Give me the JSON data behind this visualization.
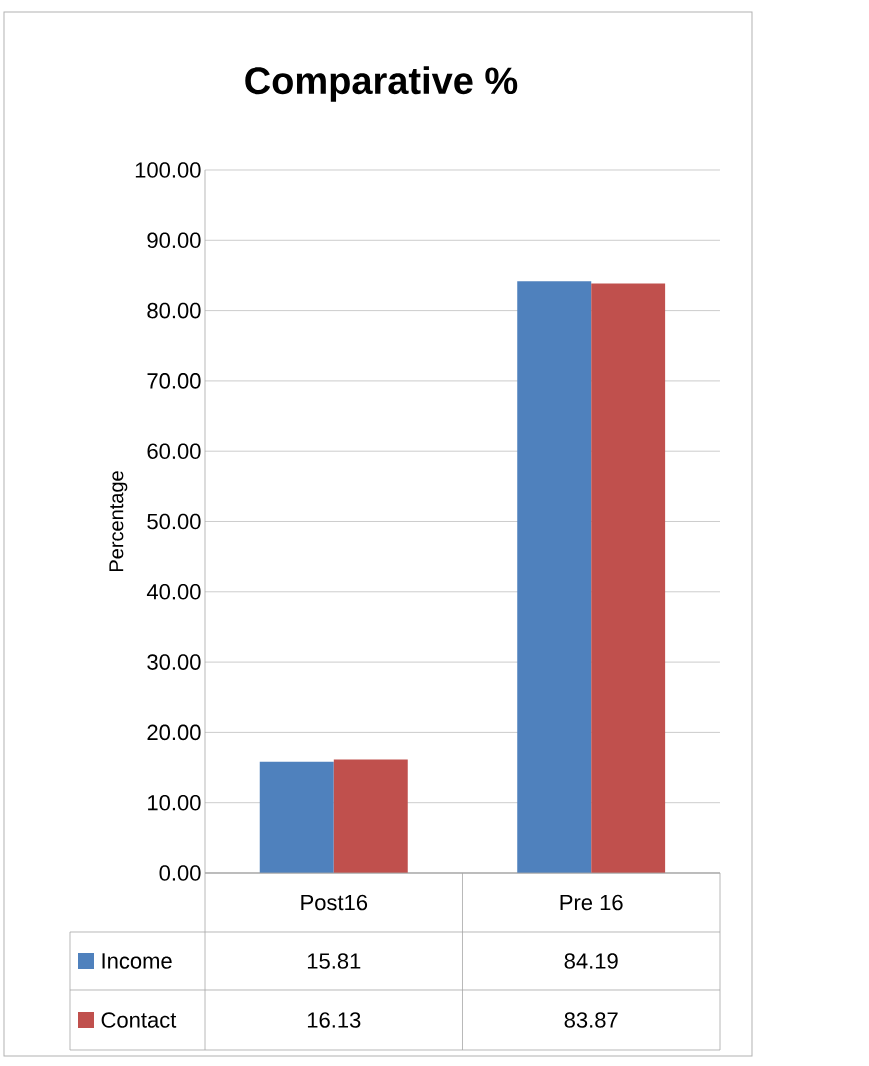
{
  "chart_data": {
    "type": "bar",
    "title": "Comparative %",
    "ylabel": "Percentage",
    "categories": [
      "Post16",
      "Pre 16"
    ],
    "series": [
      {
        "name": "Income",
        "color": "#4f81bd",
        "values": [
          15.81,
          84.19
        ]
      },
      {
        "name": "Contact",
        "color": "#c0504d",
        "values": [
          16.13,
          83.87
        ]
      }
    ],
    "ylim": [
      0,
      100
    ],
    "yticks": [
      {
        "value": 0,
        "label": "0.00"
      },
      {
        "value": 10,
        "label": "10.00"
      },
      {
        "value": 20,
        "label": "20.00"
      },
      {
        "value": 30,
        "label": "30.00"
      },
      {
        "value": 40,
        "label": "40.00"
      },
      {
        "value": 50,
        "label": "50.00"
      },
      {
        "value": 60,
        "label": "60.00"
      },
      {
        "value": 70,
        "label": "70.00"
      },
      {
        "value": 80,
        "label": "80.00"
      },
      {
        "value": 90,
        "label": "90.00"
      },
      {
        "value": 100,
        "label": "100.00"
      }
    ],
    "grid": "y",
    "legend": "bottom",
    "data_labels": true
  }
}
